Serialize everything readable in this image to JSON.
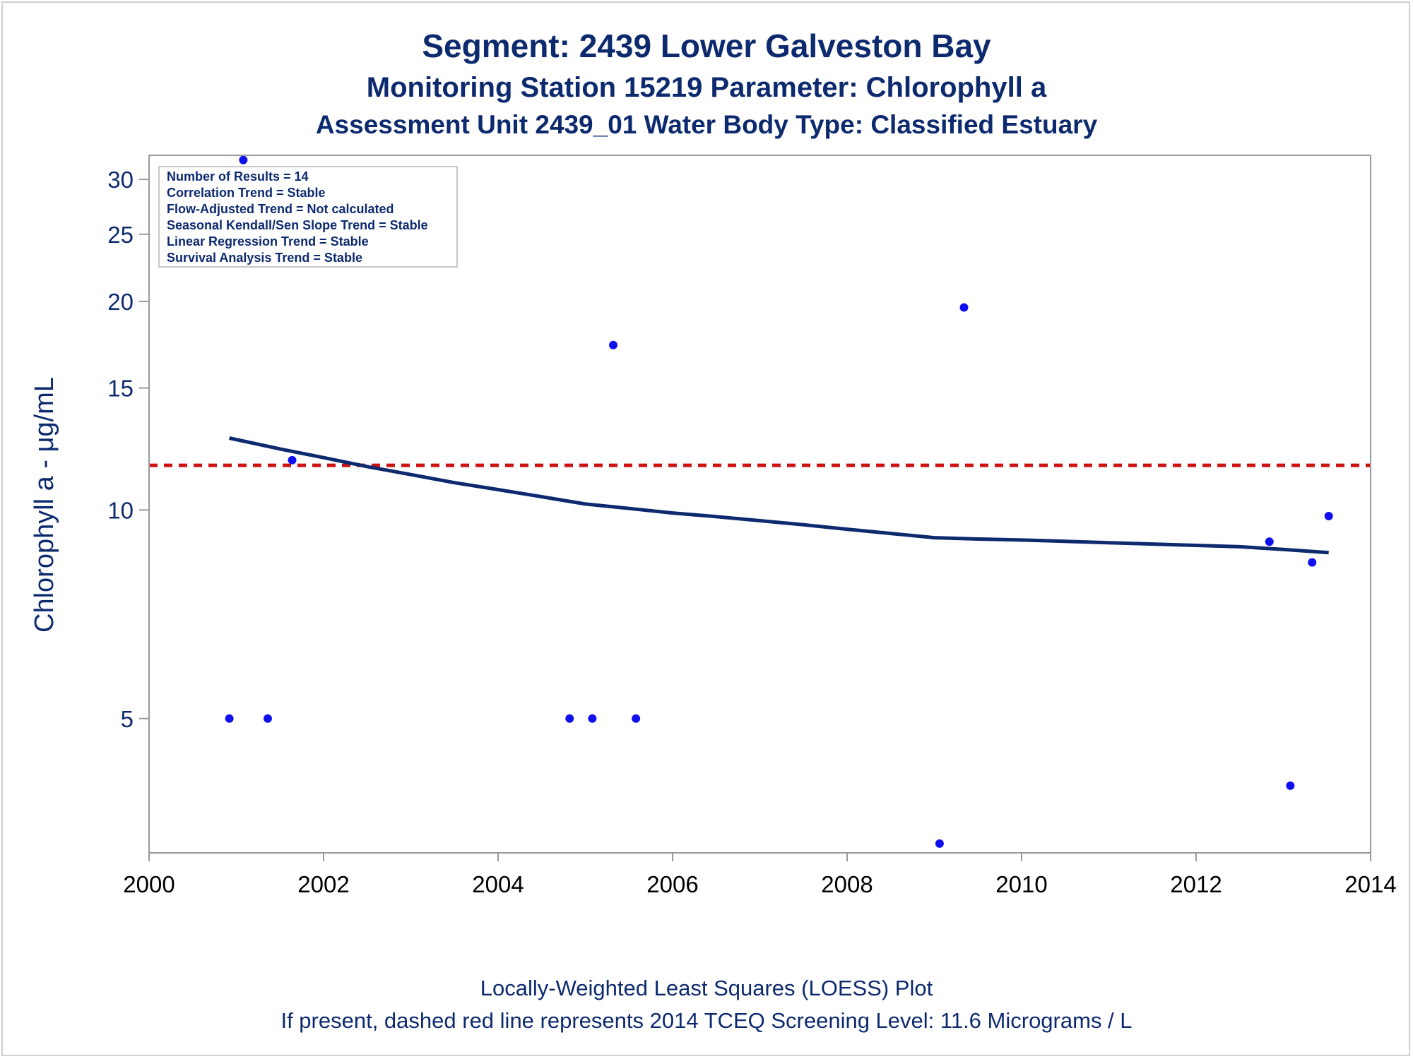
{
  "titles": {
    "line1": "Segment: 2439  Lower Galveston Bay",
    "line2": "Monitoring Station 15219 Parameter: Chlorophyll a",
    "line3": "Assessment Unit 2439_01   Water Body Type: Classified Estuary"
  },
  "footnotes": {
    "line1": "Locally-Weighted Least Squares (LOESS) Plot",
    "line2": "If present, dashed red line represents 2014 TCEQ Screening Level: 11.6 Micrograms / L"
  },
  "legend_box": {
    "lines": [
      "Number of Results = 14",
      "Correlation Trend = Stable",
      "Flow-Adjusted Trend = Not calculated",
      "Seasonal Kendall/Sen Slope Trend = Stable",
      "Linear Regression Trend = Stable",
      "Survival Analysis Trend = Stable"
    ]
  },
  "colors": {
    "text": "#0d2a6e",
    "points": "#1010ee",
    "loess": "#0d2a6e",
    "screening": "#cc1111",
    "axis": "#999999"
  },
  "chart_data": {
    "type": "scatter",
    "title": "",
    "xlabel": "",
    "ylabel": "Chlorophyll a -  μg/mL",
    "xlim": [
      2000,
      2014
    ],
    "ylim": [
      3.2,
      32.5
    ],
    "y_scale": "log",
    "x_ticks": [
      2000,
      2002,
      2004,
      2006,
      2008,
      2010,
      2012,
      2014
    ],
    "y_ticks": [
      5,
      10,
      15,
      20,
      25,
      30
    ],
    "grid": false,
    "legend_placement": "top-left",
    "series": [
      {
        "kind": "points",
        "x": [
          2000.92,
          2001.08,
          2001.36,
          2001.64,
          2004.82,
          2005.08,
          2005.32,
          2005.58,
          2009.06,
          2009.34,
          2012.84,
          2013.08,
          2013.33,
          2013.52
        ],
        "y": [
          5.0,
          32.0,
          5.0,
          11.8,
          5.0,
          5.0,
          17.3,
          5.0,
          3.3,
          19.6,
          9.0,
          4.0,
          8.4,
          9.8
        ]
      },
      {
        "kind": "loess",
        "x": [
          2000.92,
          2001.5,
          2002.0,
          2002.5,
          2003.0,
          2003.5,
          2004.0,
          2004.5,
          2005.0,
          2005.5,
          2006.0,
          2006.5,
          2007.0,
          2007.5,
          2008.0,
          2008.5,
          2009.0,
          2009.5,
          2010.0,
          2010.5,
          2011.0,
          2011.5,
          2012.0,
          2012.5,
          2013.0,
          2013.52
        ],
        "y": [
          12.7,
          12.25,
          11.9,
          11.55,
          11.25,
          10.95,
          10.7,
          10.45,
          10.2,
          10.05,
          9.9,
          9.78,
          9.65,
          9.52,
          9.38,
          9.25,
          9.12,
          9.08,
          9.05,
          9.01,
          8.97,
          8.93,
          8.89,
          8.85,
          8.77,
          8.68
        ]
      }
    ],
    "reference_line": {
      "y": 11.6,
      "style": "dashed"
    }
  }
}
